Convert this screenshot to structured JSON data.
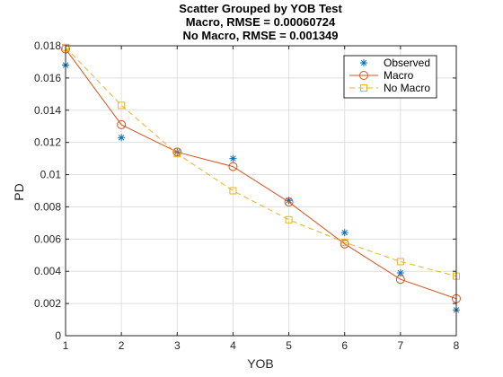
{
  "chart_data": {
    "type": "line",
    "title": [
      "Scatter Grouped by YOB Test",
      "Macro, RMSE = 0.00060724",
      "No Macro, RMSE = 0.001349"
    ],
    "xlabel": "YOB",
    "ylabel": "PD",
    "xlim": [
      1,
      8
    ],
    "ylim": [
      0,
      0.018
    ],
    "xticks": [
      1,
      2,
      3,
      4,
      5,
      6,
      7,
      8
    ],
    "xtick_labels": [
      "1",
      "2",
      "3",
      "4",
      "5",
      "6",
      "7",
      "8"
    ],
    "yticks": [
      0,
      0.002,
      0.004,
      0.006,
      0.008,
      0.01,
      0.012,
      0.014,
      0.016,
      0.018
    ],
    "ytick_labels": [
      "0",
      "0.002",
      "0.004",
      "0.006",
      "0.008",
      "0.01",
      "0.012",
      "0.014",
      "0.016",
      "0.018"
    ],
    "grid": true,
    "legend_position": "top-right",
    "x": [
      1,
      2,
      3,
      4,
      5,
      6,
      7,
      8
    ],
    "series": [
      {
        "name": "Observed",
        "style": "scatter",
        "marker": "asterisk",
        "color": "#0072BD",
        "values": [
          0.0168,
          0.0123,
          0.0114,
          0.011,
          0.0084,
          0.0064,
          0.0039,
          0.0016
        ]
      },
      {
        "name": "Macro",
        "style": "solid",
        "marker": "circle",
        "color": "#D95319",
        "values": [
          0.0178,
          0.0131,
          0.0114,
          0.0105,
          0.0083,
          0.0057,
          0.0035,
          0.0023
        ]
      },
      {
        "name": "No Macro",
        "style": "dashed",
        "marker": "square",
        "color": "#EDB120",
        "values": [
          0.0179,
          0.0143,
          0.0113,
          0.009,
          0.0072,
          0.0058,
          0.0046,
          0.0037
        ]
      }
    ]
  }
}
